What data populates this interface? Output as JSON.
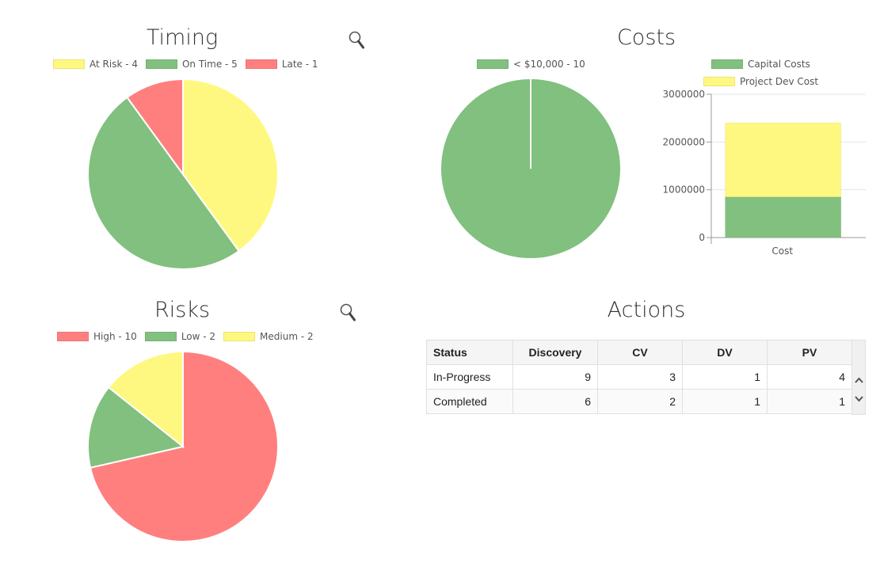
{
  "timing": {
    "title": "Timing",
    "legend": [
      {
        "label": "At Risk - 4",
        "color": "#fff880"
      },
      {
        "label": "On Time - 5",
        "color": "#81c07f"
      },
      {
        "label": "Late - 1",
        "color": "#ff7f7f"
      }
    ]
  },
  "risks": {
    "title": "Risks",
    "legend": [
      {
        "label": "High - 10",
        "color": "#ff7f7f"
      },
      {
        "label": "Low - 2",
        "color": "#81c07f"
      },
      {
        "label": "Medium - 2",
        "color": "#fff880"
      }
    ]
  },
  "costs": {
    "title": "Costs",
    "pie_legend": [
      {
        "label": "< $10,000 - 10",
        "color": "#81c07f"
      }
    ],
    "bar_legend": [
      {
        "label": "Capital Costs",
        "color": "#81c07f"
      },
      {
        "label": "Project Dev Cost",
        "color": "#fff880"
      }
    ]
  },
  "actions": {
    "title": "Actions",
    "columns": [
      "Status",
      "Discovery",
      "CV",
      "DV",
      "PV"
    ],
    "rows": [
      [
        "In-Progress",
        "9",
        "3",
        "1",
        "4"
      ],
      [
        "Completed",
        "6",
        "2",
        "1",
        "1"
      ]
    ]
  },
  "icons": {
    "zoom": "magnifier-icon",
    "scroll_up": "chevron-up-icon",
    "scroll_down": "chevron-down-icon"
  },
  "chart_data": [
    {
      "type": "pie",
      "title": "Timing",
      "categories": [
        "At Risk",
        "On Time",
        "Late"
      ],
      "values": [
        4,
        5,
        1
      ],
      "colors": [
        "#fff880",
        "#81c07f",
        "#ff7f7f"
      ]
    },
    {
      "type": "pie",
      "title": "Risks",
      "categories": [
        "High",
        "Low",
        "Medium"
      ],
      "values": [
        10,
        2,
        2
      ],
      "colors": [
        "#ff7f7f",
        "#81c07f",
        "#fff880"
      ]
    },
    {
      "type": "pie",
      "title": "Costs",
      "categories": [
        "< $10,000"
      ],
      "values": [
        10
      ],
      "colors": [
        "#81c07f"
      ]
    },
    {
      "type": "bar",
      "stacked": true,
      "categories": [
        "Cost"
      ],
      "series": [
        {
          "name": "Capital Costs",
          "values": [
            850000
          ],
          "color": "#81c07f"
        },
        {
          "name": "Project Dev Cost",
          "values": [
            1550000
          ],
          "color": "#fff880"
        }
      ],
      "yticks": [
        "0",
        "1000000",
        "2000000",
        "3000000"
      ],
      "ylim": [
        0,
        3000000
      ],
      "grid": true
    }
  ]
}
